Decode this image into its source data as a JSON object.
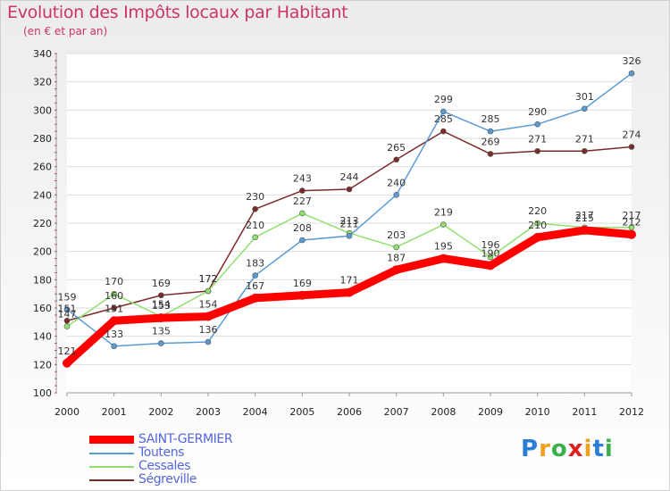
{
  "header": {
    "title": "Evolution des Impôts locaux par Habitant",
    "subtitle": "(en € et par an)"
  },
  "logo": {
    "text": "Proxiti",
    "letters": [
      "P",
      "r",
      "o",
      "x",
      "i",
      "t",
      "i"
    ],
    "letter_colors": [
      "#2a7fd4",
      "#f0a020",
      "#3cb04a",
      "#e02020",
      "#f0a020",
      "#2a7fd4",
      "#3cb04a"
    ]
  },
  "chart_data": {
    "type": "line",
    "title": "Evolution des Impôts locaux par Habitant",
    "subtitle": "(en € et par an)",
    "xlabel": "",
    "ylabel": "",
    "x": [
      "2000",
      "2001",
      "2002",
      "2003",
      "2004",
      "2005",
      "2006",
      "2007",
      "2008",
      "2009",
      "2010",
      "2011",
      "2012"
    ],
    "ylim": [
      100,
      340
    ],
    "yticks": [
      100,
      120,
      140,
      160,
      180,
      200,
      220,
      240,
      260,
      280,
      300,
      320,
      340
    ],
    "grid": "horizontal",
    "legend_position": "bottom-left",
    "series": [
      {
        "name": "SAINT-GERMIER",
        "color": "#ff0000",
        "values": [
          121,
          151,
          153,
          154,
          167,
          169,
          171,
          187,
          195,
          190,
          210,
          215,
          212
        ],
        "labels": [
          "121",
          "151",
          "153",
          "154",
          "167",
          "169",
          "171",
          "187",
          "195",
          "190",
          "210",
          "215",
          "212"
        ]
      },
      {
        "name": "Toutens",
        "color": "#5b9bd5",
        "values": [
          159,
          133,
          135,
          136,
          183,
          208,
          211,
          240,
          299,
          285,
          290,
          301,
          326
        ],
        "labels": [
          "159",
          "133",
          "135",
          "136",
          "183",
          "208",
          "211",
          "240",
          "299",
          "285",
          "290",
          "301",
          "326"
        ]
      },
      {
        "name": "Cessales",
        "color": "#90e070",
        "values": [
          147,
          170,
          154,
          172,
          210,
          227,
          213,
          203,
          219,
          196,
          220,
          217,
          217
        ],
        "labels": [
          "147",
          "170",
          "154",
          "172",
          "210",
          "227",
          "213",
          "203",
          "219",
          "196",
          "220",
          "217",
          "217"
        ]
      },
      {
        "name": "Ségreville",
        "color": "#7b2a2a",
        "values": [
          151,
          160,
          169,
          172,
          230,
          243,
          244,
          265,
          285,
          269,
          271,
          271,
          274
        ],
        "labels": [
          "151",
          "160",
          "169",
          "172",
          "230",
          "243",
          "244",
          "265",
          "285",
          "269",
          "271",
          "271",
          "274"
        ]
      }
    ]
  }
}
